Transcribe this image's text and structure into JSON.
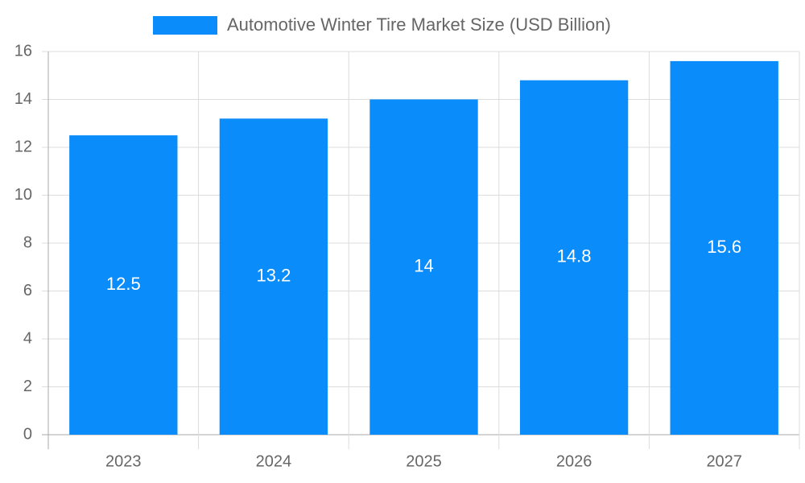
{
  "chart_data": {
    "type": "bar",
    "categories": [
      "2023",
      "2024",
      "2025",
      "2026",
      "2027"
    ],
    "series": [
      {
        "name": "Automotive Winter Tire Market Size (USD Billion)",
        "color": "#0a8cfa",
        "values": [
          12.5,
          13.2,
          14,
          14.8,
          15.6
        ]
      }
    ],
    "ylim": [
      0,
      16
    ],
    "yticks": [
      0,
      2,
      4,
      6,
      8,
      10,
      12,
      14,
      16
    ],
    "grid": true
  }
}
